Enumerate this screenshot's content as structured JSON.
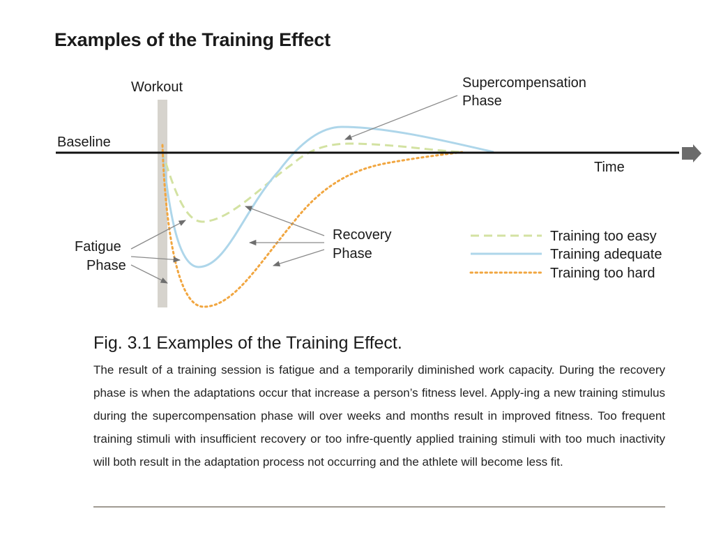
{
  "page": {
    "title": "Examples of the Training Effect"
  },
  "diagram": {
    "labels": {
      "workout": "Workout",
      "baseline": "Baseline",
      "time": "Time",
      "supercompensation_1": "Supercompensation",
      "supercompensation_2": "Phase",
      "recovery_1": "Recovery",
      "recovery_2": "Phase",
      "fatigue_1": "Fatigue",
      "fatigue_2": "Phase"
    },
    "legend": [
      {
        "label": "Training too easy",
        "color": "#d3e2a2",
        "style": "dashed"
      },
      {
        "label": "Training adequate",
        "color": "#aed6ea",
        "style": "solid"
      },
      {
        "label": "Training too hard",
        "color": "#f1a640",
        "style": "dotted"
      }
    ],
    "colors": {
      "workout_bar": "#d6d3cd",
      "axis": "#111111",
      "arrow_head": "#6b6b6b",
      "pointer": "#8a8a8a"
    }
  },
  "caption": {
    "title": "Fig. 3.1 Examples of the Training Effect.",
    "body": "The result of a training session is fatigue and a temporarily diminished work capacity. During the recovery phase is when the adaptations occur that increase a person’s fitness level. Apply-ing a new training stimulus during the supercompensation phase will over weeks and months result in improved fitness. Too frequent training stimuli with insufficient recovery or too infre-quently applied training stimuli with too much inactivity will both result in the adaptation process not occurring and the athlete will become less fit."
  }
}
